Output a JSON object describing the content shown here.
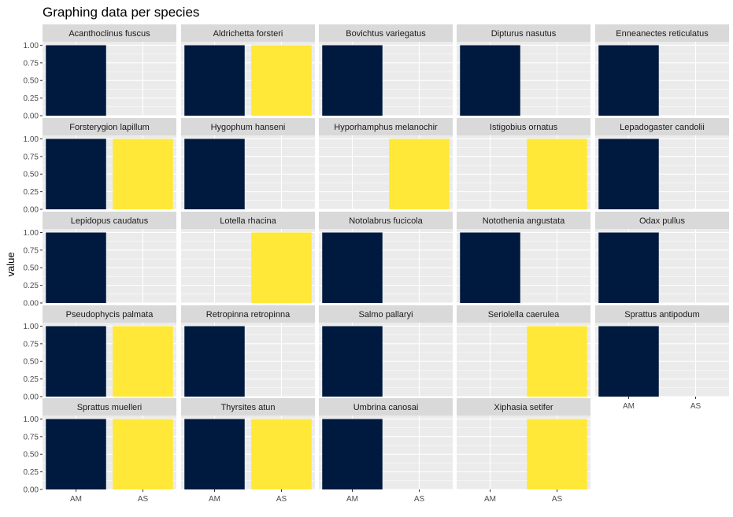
{
  "chart_data": {
    "type": "bar",
    "layout": "facet-grid",
    "title": "Graphing data per species",
    "xlabel": "",
    "ylabel": "value",
    "ylim": [
      0,
      1.05
    ],
    "yticks": [
      "0.00",
      "0.25",
      "0.50",
      "0.75",
      "1.00"
    ],
    "categories": [
      "AM",
      "AS"
    ],
    "colors": {
      "AM": "#00193f",
      "AS": "#ffe837",
      "panel": "#ebebeb",
      "strip": "#d9d9d9",
      "grid": "#ffffff"
    },
    "grid": true,
    "legend": "none",
    "facets": [
      {
        "name": "Acanthoclinus fuscus",
        "values": [
          1,
          0
        ]
      },
      {
        "name": "Aldrichetta forsteri",
        "values": [
          1,
          1
        ]
      },
      {
        "name": "Bovichtus variegatus",
        "values": [
          1,
          0
        ]
      },
      {
        "name": "Dipturus nasutus",
        "values": [
          1,
          0
        ]
      },
      {
        "name": "Enneanectes reticulatus",
        "values": [
          1,
          0
        ]
      },
      {
        "name": "Forsterygion lapillum",
        "values": [
          1,
          1
        ]
      },
      {
        "name": "Hygophum hanseni",
        "values": [
          1,
          0
        ]
      },
      {
        "name": "Hyporhamphus melanochir",
        "values": [
          0,
          1
        ]
      },
      {
        "name": "Istigobius ornatus",
        "values": [
          0,
          1
        ]
      },
      {
        "name": "Lepadogaster candolii",
        "values": [
          1,
          0
        ]
      },
      {
        "name": "Lepidopus caudatus",
        "values": [
          1,
          0
        ]
      },
      {
        "name": "Lotella rhacina",
        "values": [
          0,
          1
        ]
      },
      {
        "name": "Notolabrus fucicola",
        "values": [
          1,
          0
        ]
      },
      {
        "name": "Notothenia angustata",
        "values": [
          1,
          0
        ]
      },
      {
        "name": "Odax pullus",
        "values": [
          1,
          0
        ]
      },
      {
        "name": "Pseudophycis palmata",
        "values": [
          1,
          1
        ]
      },
      {
        "name": "Retropinna retropinna",
        "values": [
          1,
          0
        ]
      },
      {
        "name": "Salmo pallaryi",
        "values": [
          1,
          0
        ]
      },
      {
        "name": "Seriolella caerulea",
        "values": [
          0,
          1
        ]
      },
      {
        "name": "Sprattus antipodum",
        "values": [
          1,
          0
        ]
      },
      {
        "name": "Sprattus muelleri",
        "values": [
          1,
          1
        ]
      },
      {
        "name": "Thyrsites atun",
        "values": [
          1,
          1
        ]
      },
      {
        "name": "Umbrina canosai",
        "values": [
          1,
          0
        ]
      },
      {
        "name": "Xiphasia setifer",
        "values": [
          0,
          1
        ]
      }
    ]
  }
}
